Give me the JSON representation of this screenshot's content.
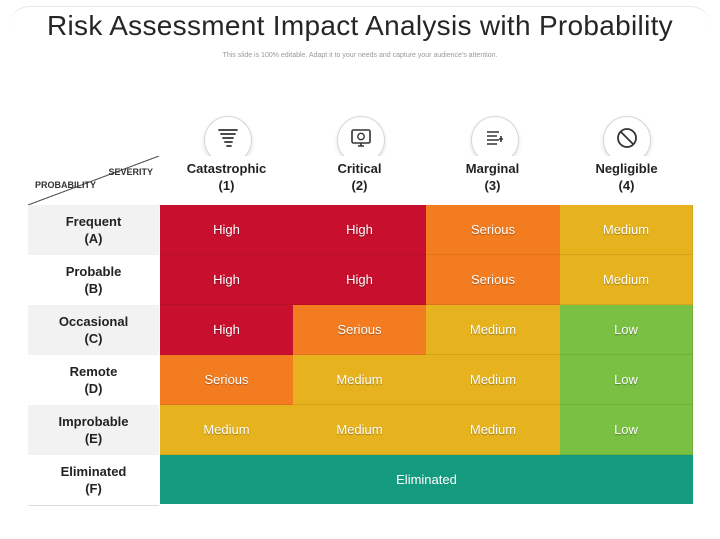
{
  "title": "Risk Assessment Impact Analysis with Probability",
  "subtitle": "This slide is 100% editable. Adapt it to your needs and capture your audience's attention.",
  "corner": {
    "severity_label": "SEVERITY",
    "probability_label": "PROBABILITY"
  },
  "colors": {
    "High": "#c8102e",
    "Serious": "#f47c20",
    "Medium": "#e6b31e",
    "Low": "#7ac143",
    "Eliminated": "#149a7e"
  },
  "columns": [
    {
      "name": "Catastrophic",
      "code": "(1)",
      "icon": "tornado-icon"
    },
    {
      "name": "Critical",
      "code": "(2)",
      "icon": "monitor-alert-icon"
    },
    {
      "name": "Marginal",
      "code": "(3)",
      "icon": "list-adjust-icon"
    },
    {
      "name": "Negligible",
      "code": "(4)",
      "icon": "prohibited-icon"
    }
  ],
  "rows": [
    {
      "name": "Frequent",
      "code": "(A)"
    },
    {
      "name": "Probable",
      "code": "(B)"
    },
    {
      "name": "Occasional",
      "code": "(C)"
    },
    {
      "name": "Remote",
      "code": "(D)"
    },
    {
      "name": "Improbable",
      "code": "(E)"
    },
    {
      "name": "Eliminated",
      "code": "(F)"
    }
  ],
  "matrix": [
    [
      "High",
      "High",
      "Serious",
      "Medium"
    ],
    [
      "High",
      "High",
      "Serious",
      "Medium"
    ],
    [
      "High",
      "Serious",
      "Medium",
      "Low"
    ],
    [
      "Serious",
      "Medium",
      "Medium",
      "Low"
    ],
    [
      "Medium",
      "Medium",
      "Medium",
      "Low"
    ]
  ],
  "eliminated_label": "Eliminated"
}
